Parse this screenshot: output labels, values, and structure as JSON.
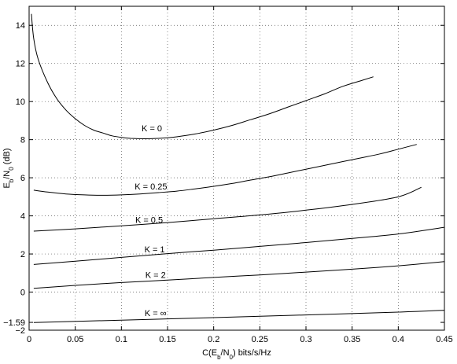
{
  "chart_data": {
    "type": "line",
    "title": "",
    "xlabel": "C(E_b/N_0) bits/s/Hz",
    "ylabel": "E_b/N_0 (dB)",
    "xlim": [
      0,
      0.45
    ],
    "ylim": [
      -2,
      15
    ],
    "xticks": [
      0,
      0.05,
      0.1,
      0.15,
      0.2,
      0.25,
      0.3,
      0.35,
      0.4,
      0.45
    ],
    "xtick_labels": [
      "0",
      "0.05",
      "0.1",
      "0.15",
      "0.2",
      "0.25",
      "0.3",
      "0.35",
      "0.4",
      "0.45"
    ],
    "yticks": [
      -2,
      0,
      2,
      4,
      6,
      8,
      10,
      12,
      14
    ],
    "ytick_labels": [
      "−2",
      "0",
      "2",
      "4",
      "6",
      "8",
      "10",
      "12",
      "14"
    ],
    "extra_ytick": {
      "value": -1.59,
      "label": "−1.59"
    },
    "grid": true,
    "series": [
      {
        "name": "K = 0",
        "label_at": [
          0.133,
          8.6
        ],
        "points": [
          [
            0.0025,
            14.6
          ],
          [
            0.005,
            13.3
          ],
          [
            0.01,
            12.2
          ],
          [
            0.02,
            11.0
          ],
          [
            0.03,
            10.15
          ],
          [
            0.04,
            9.55
          ],
          [
            0.05,
            9.1
          ],
          [
            0.06,
            8.75
          ],
          [
            0.07,
            8.5
          ],
          [
            0.08,
            8.35
          ],
          [
            0.09,
            8.2
          ],
          [
            0.1,
            8.12
          ],
          [
            0.11,
            8.07
          ],
          [
            0.12,
            8.05
          ],
          [
            0.13,
            8.05
          ],
          [
            0.14,
            8.07
          ],
          [
            0.15,
            8.1
          ],
          [
            0.16,
            8.15
          ],
          [
            0.18,
            8.3
          ],
          [
            0.2,
            8.5
          ],
          [
            0.22,
            8.75
          ],
          [
            0.24,
            9.05
          ],
          [
            0.26,
            9.35
          ],
          [
            0.28,
            9.7
          ],
          [
            0.3,
            10.05
          ],
          [
            0.32,
            10.4
          ],
          [
            0.34,
            10.8
          ],
          [
            0.36,
            11.1
          ],
          [
            0.373,
            11.3
          ]
        ]
      },
      {
        "name": "K = 0.25",
        "label_at": [
          0.132,
          5.55
        ],
        "points": [
          [
            0.005,
            5.35
          ],
          [
            0.02,
            5.25
          ],
          [
            0.04,
            5.15
          ],
          [
            0.06,
            5.1
          ],
          [
            0.08,
            5.08
          ],
          [
            0.1,
            5.1
          ],
          [
            0.12,
            5.15
          ],
          [
            0.14,
            5.22
          ],
          [
            0.16,
            5.3
          ],
          [
            0.18,
            5.42
          ],
          [
            0.2,
            5.55
          ],
          [
            0.22,
            5.7
          ],
          [
            0.24,
            5.88
          ],
          [
            0.26,
            6.05
          ],
          [
            0.28,
            6.25
          ],
          [
            0.3,
            6.45
          ],
          [
            0.32,
            6.65
          ],
          [
            0.34,
            6.85
          ],
          [
            0.36,
            7.05
          ],
          [
            0.38,
            7.25
          ],
          [
            0.4,
            7.5
          ],
          [
            0.42,
            7.75
          ]
        ]
      },
      {
        "name": "K = 0.5",
        "label_at": [
          0.13,
          3.8
        ],
        "points": [
          [
            0.005,
            3.2
          ],
          [
            0.05,
            3.32
          ],
          [
            0.1,
            3.48
          ],
          [
            0.15,
            3.65
          ],
          [
            0.2,
            3.85
          ],
          [
            0.25,
            4.05
          ],
          [
            0.3,
            4.3
          ],
          [
            0.35,
            4.6
          ],
          [
            0.4,
            5.0
          ],
          [
            0.425,
            5.5
          ]
        ]
      },
      {
        "name": "K = 1",
        "label_at": [
          0.136,
          2.25
        ],
        "points": [
          [
            0.005,
            1.45
          ],
          [
            0.05,
            1.62
          ],
          [
            0.1,
            1.82
          ],
          [
            0.15,
            2.02
          ],
          [
            0.2,
            2.2
          ],
          [
            0.25,
            2.4
          ],
          [
            0.3,
            2.6
          ],
          [
            0.35,
            2.82
          ],
          [
            0.4,
            3.05
          ],
          [
            0.45,
            3.4
          ]
        ]
      },
      {
        "name": "K = 2",
        "label_at": [
          0.137,
          0.9
        ],
        "points": [
          [
            0.005,
            0.2
          ],
          [
            0.05,
            0.35
          ],
          [
            0.1,
            0.5
          ],
          [
            0.15,
            0.63
          ],
          [
            0.2,
            0.77
          ],
          [
            0.25,
            0.9
          ],
          [
            0.3,
            1.05
          ],
          [
            0.35,
            1.2
          ],
          [
            0.4,
            1.38
          ],
          [
            0.45,
            1.6
          ]
        ]
      },
      {
        "name": "K = ∞",
        "label_at": [
          0.137,
          -1.1
        ],
        "points": [
          [
            0.005,
            -1.6
          ],
          [
            0.1,
            -1.47
          ],
          [
            0.2,
            -1.34
          ],
          [
            0.3,
            -1.2
          ],
          [
            0.4,
            -1.05
          ],
          [
            0.45,
            -0.95
          ]
        ]
      }
    ]
  }
}
